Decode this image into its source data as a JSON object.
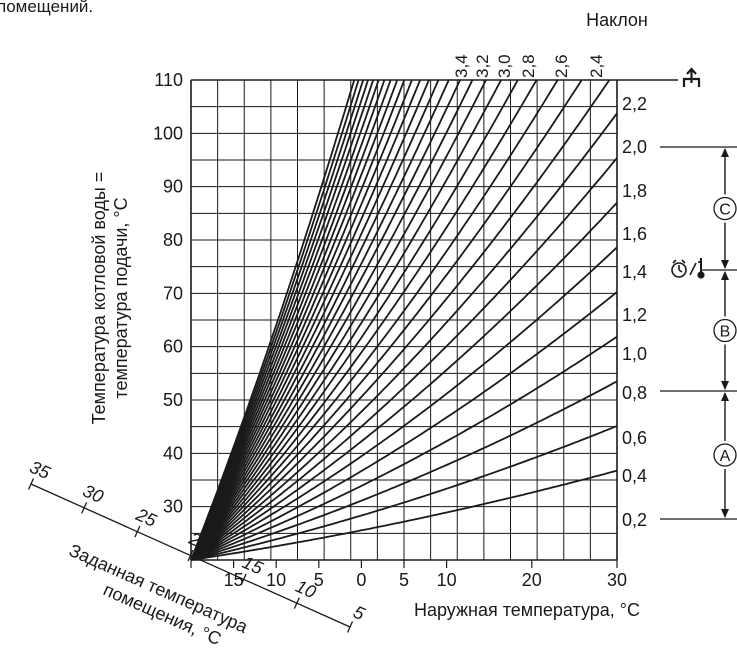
{
  "header_fragment": "помещений.",
  "chart_data": {
    "type": "line",
    "title": "",
    "slope_header": "Наклон",
    "xlabel": "Наружная температура, °C",
    "ylabel_line1": "Температура котловой воды =",
    "ylabel_line2": "температура подачи, °C",
    "xlim": [
      20,
      -30
    ],
    "ylim": [
      20,
      110
    ],
    "x_ticks": [
      "20",
      "15",
      "10",
      "5",
      "0",
      "5",
      "10",
      "20",
      "30"
    ],
    "x_tick_values": [
      20,
      15,
      10,
      5,
      0,
      -5,
      -10,
      -20,
      -30
    ],
    "y_ticks": [
      110,
      100,
      90,
      80,
      70,
      60,
      50,
      40,
      30
    ],
    "slope_curves": [
      0.2,
      0.3,
      0.4,
      0.5,
      0.6,
      0.7,
      0.8,
      0.9,
      1.0,
      1.1,
      1.2,
      1.3,
      1.4,
      1.5,
      1.6,
      1.7,
      1.8,
      1.9,
      2.0,
      2.1,
      2.2,
      2.3,
      2.4,
      2.5,
      2.6,
      2.7,
      2.8,
      2.9,
      3.0,
      3.1,
      3.2,
      3.3,
      3.4
    ],
    "top_slope_labels": [
      "3,4",
      "3,2",
      "3,0",
      "2,8",
      "2,6",
      "2,4"
    ],
    "right_slope_labels": [
      {
        "label": "2,2",
        "value": 2.2
      },
      {
        "label": "2,0",
        "value": 2.0
      },
      {
        "label": "1,8",
        "value": 1.8
      },
      {
        "label": "1,6",
        "value": 1.6
      },
      {
        "label": "1,4",
        "value": 1.4
      },
      {
        "label": "1,2",
        "value": 1.2
      },
      {
        "label": "1,0",
        "value": 1.0
      },
      {
        "label": "0,8",
        "value": 0.8
      },
      {
        "label": "0,6",
        "value": 0.6
      },
      {
        "label": "0,4",
        "value": 0.4
      },
      {
        "label": "0,2",
        "value": 0.2
      }
    ],
    "room_axis_label_line1": "Заданная температура",
    "room_axis_label_line2": "помещения, °C",
    "room_ticks": [
      "35",
      "30",
      "25",
      "20",
      "15",
      "10",
      "5"
    ],
    "ranges": [
      {
        "letter": "C",
        "from": 2.0,
        "to": 1.4
      },
      {
        "letter": "B",
        "from": 1.4,
        "to": 0.8
      },
      {
        "letter": "A",
        "from": 0.8,
        "to": 0.2
      }
    ],
    "line_color": "#1a1a1a",
    "grid": true
  }
}
